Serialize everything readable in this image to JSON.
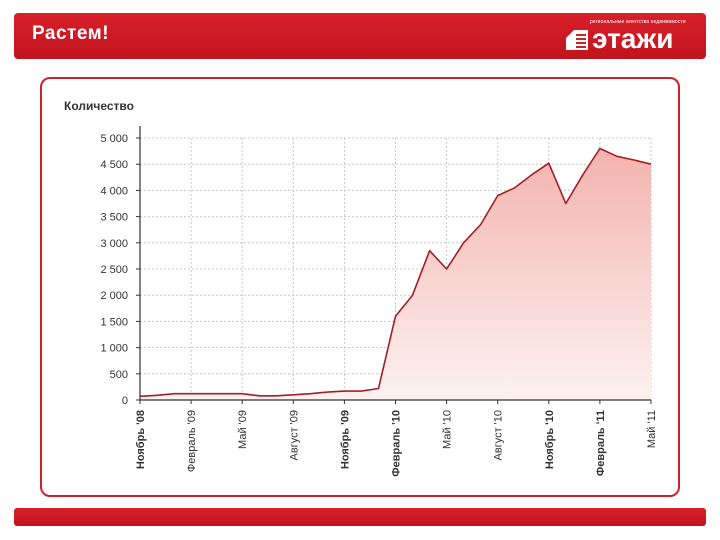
{
  "header": {
    "title": "Растем!",
    "logo_tagline": "региональные агентства недвижимости",
    "logo_word": "этажи",
    "logo_icon": "building-mark-icon"
  },
  "colors": {
    "brand_red": "#c9242b",
    "line": "#a61e24",
    "fill_top": "#f3b3ae",
    "fill_bottom": "#fdf2f1",
    "grid": "#c8c8c8"
  },
  "chart_data": {
    "type": "area",
    "title": "",
    "ylabel": "Количество",
    "xlabel": "",
    "ylim": [
      0,
      5000
    ],
    "yticks": [
      0,
      500,
      1000,
      1500,
      2000,
      2500,
      3000,
      3500,
      4000,
      4500,
      5000
    ],
    "ytick_labels": [
      "0",
      "500",
      "1 000",
      "1 500",
      "2 000",
      "2 500",
      "3 000",
      "3 500",
      "4 000",
      "4 500",
      "5 000"
    ],
    "x_count": 31,
    "xticks": [
      {
        "index": 0,
        "label": "Ноябрь '08",
        "bold": true
      },
      {
        "index": 3,
        "label": "Февраль '09",
        "bold": false
      },
      {
        "index": 6,
        "label": "Май '09",
        "bold": false
      },
      {
        "index": 9,
        "label": "Август '09",
        "bold": false
      },
      {
        "index": 12,
        "label": "Ноябрь '09",
        "bold": true
      },
      {
        "index": 15,
        "label": "Февраль '10",
        "bold": true
      },
      {
        "index": 18,
        "label": "Май '10",
        "bold": false
      },
      {
        "index": 21,
        "label": "Август '10",
        "bold": false
      },
      {
        "index": 24,
        "label": "Ноябрь '10",
        "bold": true
      },
      {
        "index": 27,
        "label": "Февраль '11",
        "bold": true
      },
      {
        "index": 30,
        "label": "Май '11",
        "bold": false
      }
    ],
    "series": [
      {
        "values": [
          70,
          90,
          120,
          120,
          120,
          120,
          120,
          80,
          80,
          100,
          120,
          150,
          170,
          170,
          220,
          1600,
          2000,
          2850,
          2500,
          3000,
          3350,
          3900,
          4050,
          4300,
          4520,
          3750,
          4300,
          4800,
          4650,
          4580,
          4500
        ]
      }
    ],
    "grid": true
  }
}
